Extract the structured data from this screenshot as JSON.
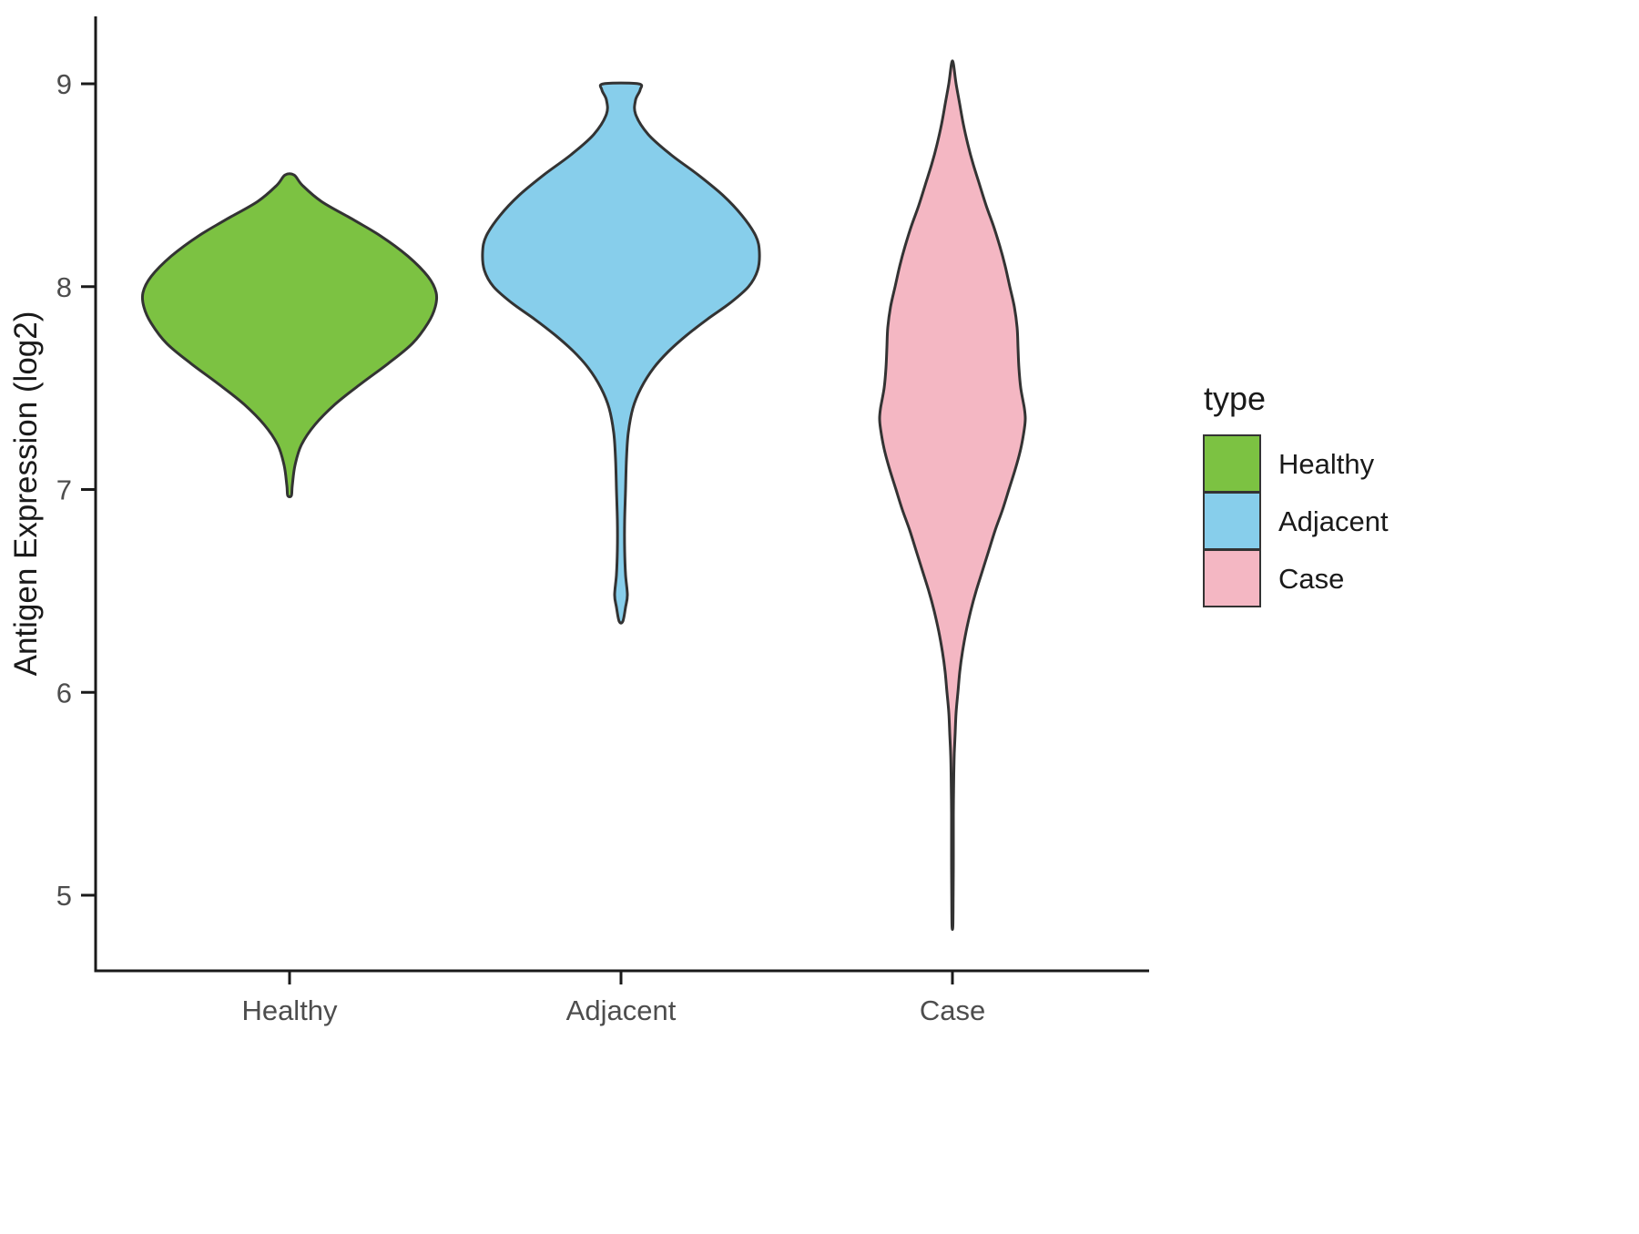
{
  "chart_data": {
    "type": "violin",
    "title": "",
    "xlabel": "",
    "ylabel": "Antigen Expression (log2)",
    "categories": [
      "Healthy",
      "Adjacent",
      "Case"
    ],
    "y_ticks": [
      9,
      8,
      7,
      6,
      5
    ],
    "ylim": [
      4.6,
      9.3
    ],
    "grid": "off",
    "legend": {
      "title": "type",
      "position": "right",
      "entries": [
        {
          "label": "Healthy",
          "color": "#7CC242"
        },
        {
          "label": "Adjacent",
          "color": "#87CEEB"
        },
        {
          "label": "Case",
          "color": "#F4B7C3"
        }
      ]
    },
    "violins": [
      {
        "name": "Healthy",
        "color": "#7CC242",
        "range": [
          6.97,
          8.55
        ],
        "peak_at": 7.97,
        "profile": [
          [
            8.55,
            5
          ],
          [
            8.5,
            14
          ],
          [
            8.42,
            35
          ],
          [
            8.33,
            70
          ],
          [
            8.25,
            100
          ],
          [
            8.15,
            130
          ],
          [
            8.05,
            152
          ],
          [
            7.97,
            161
          ],
          [
            7.9,
            160
          ],
          [
            7.82,
            152
          ],
          [
            7.72,
            135
          ],
          [
            7.62,
            108
          ],
          [
            7.52,
            78
          ],
          [
            7.42,
            50
          ],
          [
            7.32,
            28
          ],
          [
            7.22,
            13
          ],
          [
            7.12,
            6
          ],
          [
            7.02,
            3
          ],
          [
            6.97,
            2
          ]
        ]
      },
      {
        "name": "Adjacent",
        "color": "#87CEEB",
        "range": [
          6.35,
          9.0
        ],
        "peak_at": 8.17,
        "profile": [
          [
            9.0,
            19
          ],
          [
            8.97,
            21
          ],
          [
            8.92,
            16
          ],
          [
            8.85,
            16
          ],
          [
            8.75,
            30
          ],
          [
            8.65,
            55
          ],
          [
            8.55,
            85
          ],
          [
            8.45,
            112
          ],
          [
            8.35,
            133
          ],
          [
            8.25,
            148
          ],
          [
            8.17,
            152
          ],
          [
            8.08,
            150
          ],
          [
            8.0,
            140
          ],
          [
            7.92,
            120
          ],
          [
            7.84,
            95
          ],
          [
            7.76,
            72
          ],
          [
            7.68,
            52
          ],
          [
            7.6,
            36
          ],
          [
            7.5,
            22
          ],
          [
            7.4,
            13
          ],
          [
            7.28,
            8
          ],
          [
            7.15,
            6
          ],
          [
            7.0,
            5
          ],
          [
            6.85,
            4
          ],
          [
            6.7,
            4
          ],
          [
            6.58,
            5
          ],
          [
            6.48,
            7
          ],
          [
            6.42,
            5
          ],
          [
            6.35,
            2
          ]
        ]
      },
      {
        "name": "Case",
        "color": "#F4B7C3",
        "range": [
          4.85,
          9.1
        ],
        "peak_at": 7.35,
        "profile": [
          [
            9.1,
            1
          ],
          [
            9.0,
            4
          ],
          [
            8.9,
            8
          ],
          [
            8.8,
            12
          ],
          [
            8.7,
            17
          ],
          [
            8.6,
            23
          ],
          [
            8.5,
            30
          ],
          [
            8.4,
            37
          ],
          [
            8.3,
            45
          ],
          [
            8.2,
            52
          ],
          [
            8.1,
            58
          ],
          [
            8.0,
            63
          ],
          [
            7.9,
            68
          ],
          [
            7.8,
            71
          ],
          [
            7.7,
            72
          ],
          [
            7.6,
            73
          ],
          [
            7.5,
            75
          ],
          [
            7.4,
            79
          ],
          [
            7.35,
            80
          ],
          [
            7.3,
            79
          ],
          [
            7.2,
            75
          ],
          [
            7.1,
            69
          ],
          [
            7.0,
            62
          ],
          [
            6.9,
            55
          ],
          [
            6.8,
            47
          ],
          [
            6.7,
            40
          ],
          [
            6.6,
            33
          ],
          [
            6.5,
            26
          ],
          [
            6.4,
            20
          ],
          [
            6.3,
            15
          ],
          [
            6.2,
            11
          ],
          [
            6.1,
            8
          ],
          [
            6.0,
            6
          ],
          [
            5.9,
            4
          ],
          [
            5.8,
            3
          ],
          [
            5.7,
            2
          ],
          [
            5.6,
            1.5
          ],
          [
            5.4,
            1
          ],
          [
            5.2,
            1
          ],
          [
            5.0,
            0.8
          ],
          [
            4.85,
            0.5
          ]
        ]
      }
    ]
  },
  "colors": {
    "outline": "#333333",
    "axis_line": "#1a1a1a",
    "tick_label": "#4d4d4d",
    "axis_title": "#1a1a1a"
  }
}
